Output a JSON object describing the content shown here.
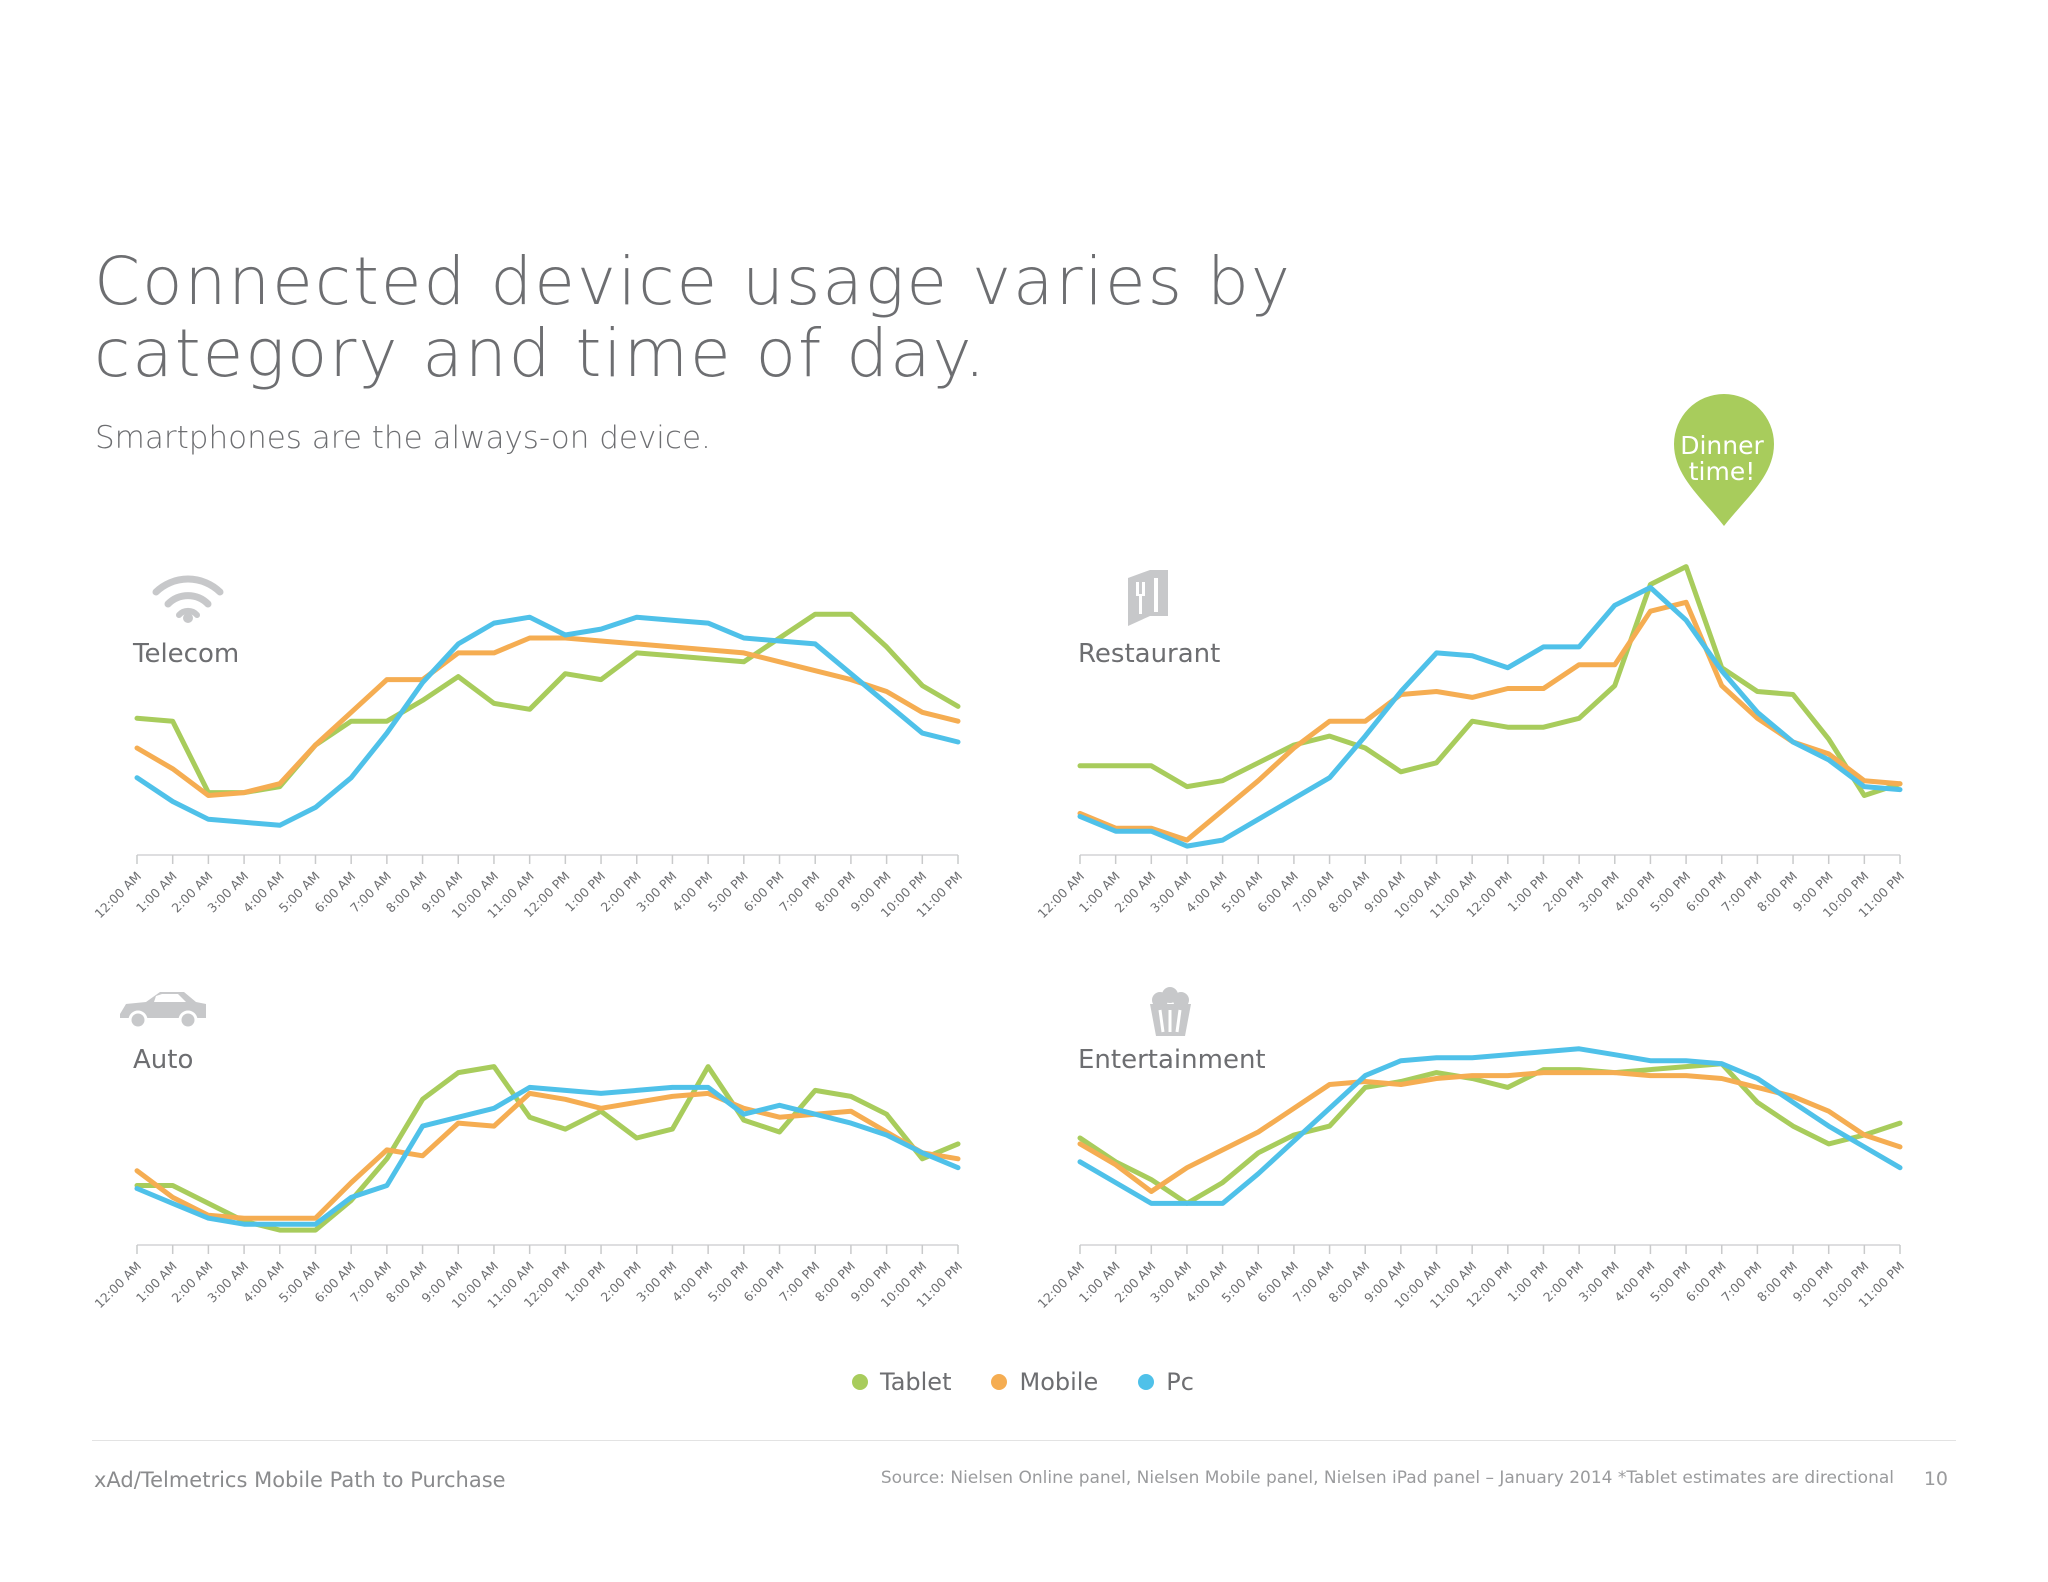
{
  "header": {
    "title_line1": "Connected device usage varies by",
    "title_line2": "category and time of day.",
    "subtitle": "Smartphones are the always-on device."
  },
  "callout": {
    "line1": "Dinner",
    "line2": "time!",
    "color": "#a8cc5c"
  },
  "legend": [
    {
      "label": "Tablet",
      "color": "#a8cc5c"
    },
    {
      "label": "Mobile",
      "color": "#f5ad52"
    },
    {
      "label": "Pc",
      "color": "#4fc1e9"
    }
  ],
  "footer": {
    "left": "xAd/Telmetrics Mobile Path to Purchase",
    "source": "Source: Nielsen Online panel, Nielsen Mobile panel, Nielsen iPad panel – January 2014  *Tablet estimates are directional",
    "page": "10"
  },
  "icons": {
    "telecom": "wifi-icon",
    "restaurant": "menu-utensils-icon",
    "auto": "car-icon",
    "entertainment": "popcorn-icon"
  },
  "chart_data": [
    {
      "type": "line",
      "title": "Telecom",
      "categories": [
        "12:00 AM",
        "1:00 AM",
        "2:00 AM",
        "3:00 AM",
        "4:00 AM",
        "5:00 AM",
        "6:00 AM",
        "7:00 AM",
        "8:00 AM",
        "9:00 AM",
        "10:00 AM",
        "11:00 AM",
        "12:00 PM",
        "1:00 PM",
        "2:00 PM",
        "3:00 PM",
        "4:00 PM",
        "5:00 PM",
        "6:00 PM",
        "7:00 PM",
        "8:00 PM",
        "9:00 PM",
        "10:00 PM",
        "11:00 PM"
      ],
      "series": [
        {
          "name": "Tablet",
          "color": "#a8cc5c",
          "values": [
            46,
            45,
            21,
            21,
            23,
            37,
            45,
            45,
            52,
            60,
            51,
            49,
            61,
            59,
            68,
            67,
            66,
            65,
            73,
            81,
            81,
            70,
            57,
            50
          ]
        },
        {
          "name": "Mobile",
          "color": "#f5ad52",
          "values": [
            36,
            29,
            20,
            21,
            24,
            37,
            48,
            59,
            59,
            68,
            68,
            73,
            73,
            72,
            71,
            70,
            69,
            68,
            65,
            62,
            59,
            55,
            48,
            45
          ]
        },
        {
          "name": "Pc",
          "color": "#4fc1e9",
          "values": [
            26,
            18,
            12,
            11,
            10,
            16,
            26,
            41,
            58,
            71,
            78,
            80,
            74,
            76,
            80,
            79,
            78,
            73,
            72,
            71,
            61,
            51,
            41,
            38
          ]
        }
      ],
      "ylim": [
        0,
        110
      ]
    },
    {
      "type": "line",
      "title": "Restaurant",
      "categories": [
        "12:00 AM",
        "1:00 AM",
        "2:00 AM",
        "3:00 AM",
        "4:00 AM",
        "5:00 AM",
        "6:00 AM",
        "7:00 AM",
        "8:00 AM",
        "9:00 AM",
        "10:00 AM",
        "11:00 AM",
        "12:00 PM",
        "1:00 PM",
        "2:00 PM",
        "3:00 PM",
        "4:00 PM",
        "5:00 PM",
        "6:00 PM",
        "7:00 PM",
        "8:00 PM",
        "9:00 PM",
        "10:00 PM",
        "11:00 PM"
      ],
      "series": [
        {
          "name": "Tablet",
          "color": "#a8cc5c",
          "values": [
            30,
            30,
            30,
            23,
            25,
            31,
            37,
            40,
            36,
            28,
            31,
            45,
            43,
            43,
            46,
            57,
            91,
            97,
            63,
            55,
            54,
            39,
            20,
            24
          ]
        },
        {
          "name": "Mobile",
          "color": "#f5ad52",
          "values": [
            14,
            9,
            9,
            5,
            15,
            25,
            36,
            45,
            45,
            54,
            55,
            53,
            56,
            56,
            64,
            64,
            82,
            85,
            57,
            46,
            38,
            34,
            25,
            24
          ]
        },
        {
          "name": "Pc",
          "color": "#4fc1e9",
          "values": [
            13,
            8,
            8,
            3,
            5,
            12,
            19,
            26,
            40,
            55,
            68,
            67,
            63,
            70,
            70,
            84,
            90,
            79,
            62,
            48,
            38,
            32,
            23,
            22
          ]
        }
      ],
      "ylim": [
        0,
        110
      ]
    },
    {
      "type": "line",
      "title": "Auto",
      "categories": [
        "12:00 AM",
        "1:00 AM",
        "2:00 AM",
        "3:00 AM",
        "4:00 AM",
        "5:00 AM",
        "6:00 AM",
        "7:00 AM",
        "8:00 AM",
        "9:00 AM",
        "10:00 AM",
        "11:00 AM",
        "12:00 PM",
        "1:00 PM",
        "2:00 PM",
        "3:00 PM",
        "4:00 PM",
        "5:00 PM",
        "6:00 PM",
        "7:00 PM",
        "8:00 PM",
        "9:00 PM",
        "10:00 PM",
        "11:00 PM"
      ],
      "series": [
        {
          "name": "Tablet",
          "color": "#a8cc5c",
          "values": [
            20,
            20,
            14,
            8,
            5,
            5,
            15,
            29,
            49,
            58,
            60,
            43,
            39,
            45,
            36,
            39,
            60,
            42,
            38,
            52,
            50,
            44,
            29,
            34
          ]
        },
        {
          "name": "Mobile",
          "color": "#f5ad52",
          "values": [
            25,
            16,
            10,
            9,
            9,
            9,
            21,
            32,
            30,
            41,
            40,
            51,
            49,
            46,
            48,
            50,
            51,
            46,
            43,
            44,
            45,
            38,
            31,
            29
          ]
        },
        {
          "name": "Pc",
          "color": "#4fc1e9",
          "values": [
            19,
            14,
            9,
            7,
            7,
            7,
            16,
            20,
            40,
            43,
            46,
            53,
            52,
            51,
            52,
            53,
            53,
            44,
            47,
            44,
            41,
            37,
            31,
            26
          ]
        }
      ],
      "ylim": [
        0,
        110
      ]
    },
    {
      "type": "line",
      "title": "Entertainment",
      "categories": [
        "12:00 AM",
        "1:00 AM",
        "2:00 AM",
        "3:00 AM",
        "4:00 AM",
        "5:00 AM",
        "6:00 AM",
        "7:00 AM",
        "8:00 AM",
        "9:00 AM",
        "10:00 AM",
        "11:00 AM",
        "12:00 PM",
        "1:00 PM",
        "2:00 PM",
        "3:00 PM",
        "4:00 PM",
        "5:00 PM",
        "6:00 PM",
        "7:00 PM",
        "8:00 PM",
        "9:00 PM",
        "10:00 PM",
        "11:00 PM"
      ],
      "series": [
        {
          "name": "Tablet",
          "color": "#a8cc5c",
          "values": [
            36,
            28,
            22,
            14,
            21,
            31,
            37,
            40,
            53,
            55,
            58,
            56,
            53,
            59,
            59,
            58,
            59,
            60,
            61,
            48,
            40,
            34,
            37,
            41
          ]
        },
        {
          "name": "Mobile",
          "color": "#f5ad52",
          "values": [
            34,
            27,
            18,
            26,
            32,
            38,
            46,
            54,
            55,
            54,
            56,
            57,
            57,
            58,
            58,
            58,
            57,
            57,
            56,
            53,
            50,
            45,
            37,
            33
          ]
        },
        {
          "name": "Pc",
          "color": "#4fc1e9",
          "values": [
            28,
            21,
            14,
            14,
            14,
            24,
            35,
            46,
            57,
            62,
            63,
            63,
            64,
            65,
            66,
            64,
            62,
            62,
            61,
            56,
            48,
            40,
            33,
            26
          ]
        }
      ],
      "ylim": [
        0,
        110
      ]
    }
  ]
}
